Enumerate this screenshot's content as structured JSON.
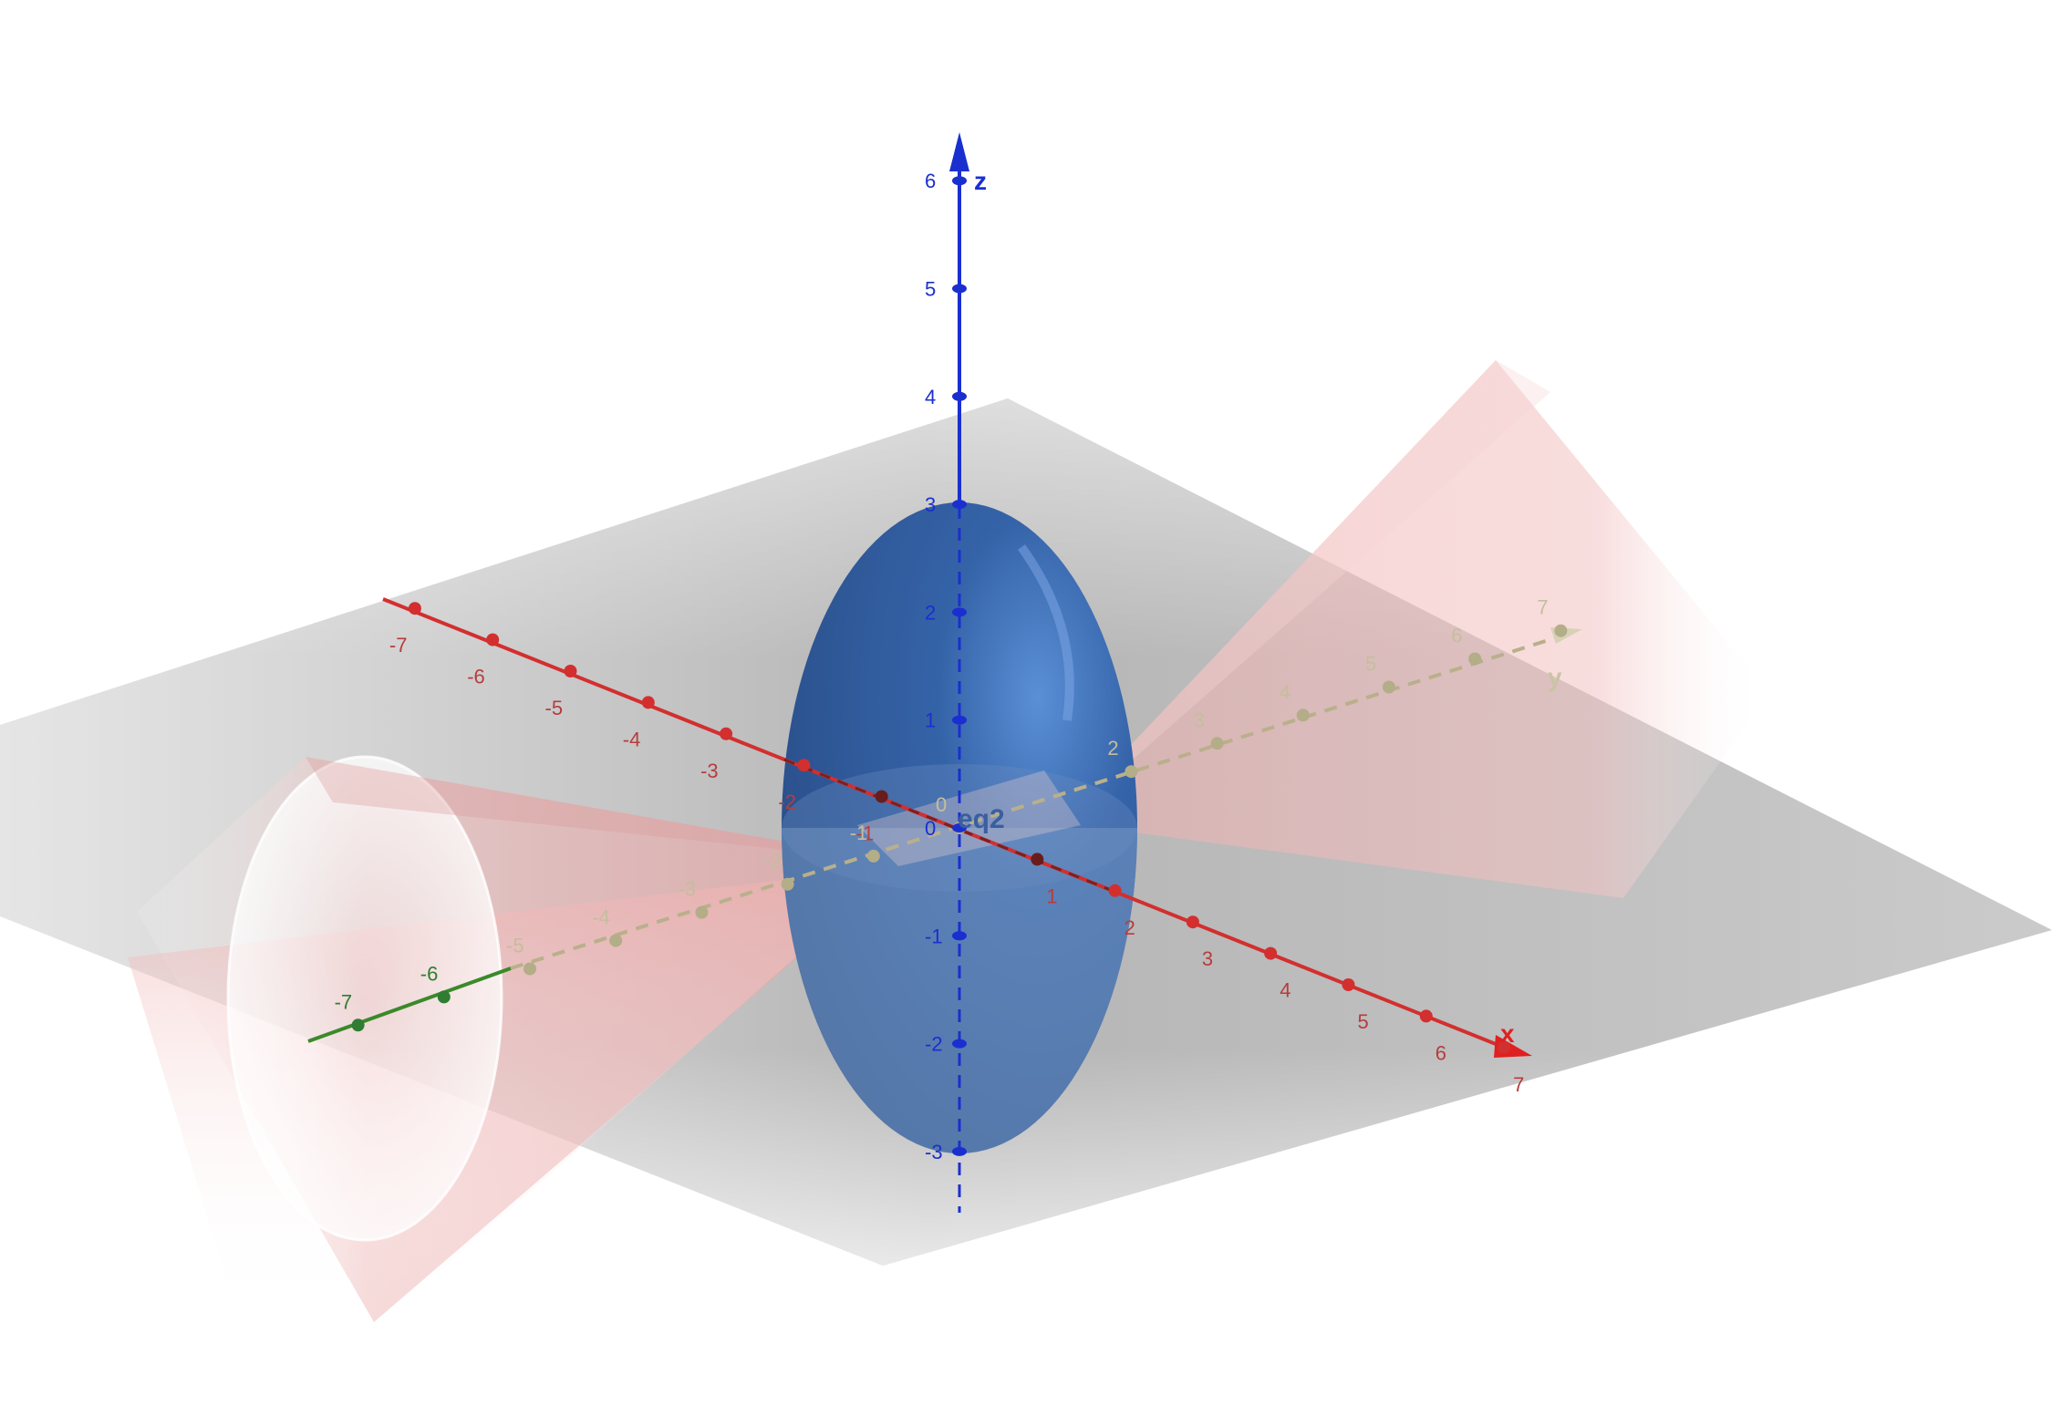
{
  "app": "GeoGebra 3D Graphics",
  "colors": {
    "x_axis": "#d32f2f",
    "y_axis": "#2e7d32",
    "z_axis": "#1a2fd0",
    "ellipsoid": "#2f5fa8",
    "cone": "#f2b9b9",
    "plane": "#9e9e9e"
  },
  "axes": {
    "x": {
      "name": "x",
      "ticks": [
        {
          "label": "-7",
          "value": -7
        },
        {
          "label": "-6",
          "value": -6
        },
        {
          "label": "-5",
          "value": -5
        },
        {
          "label": "-4",
          "value": -4
        },
        {
          "label": "-3",
          "value": -3
        },
        {
          "label": "-2",
          "value": -2
        },
        {
          "label": "-1",
          "value": -1
        },
        {
          "label": "1",
          "value": 1
        },
        {
          "label": "2",
          "value": 2
        },
        {
          "label": "3",
          "value": 3
        },
        {
          "label": "4",
          "value": 4
        },
        {
          "label": "5",
          "value": 5
        },
        {
          "label": "6",
          "value": 6
        },
        {
          "label": "7",
          "value": 7
        }
      ]
    },
    "y": {
      "name": "y",
      "ticks": [
        {
          "label": "-7",
          "value": -7
        },
        {
          "label": "-6",
          "value": -6
        },
        {
          "label": "-5",
          "value": -5
        },
        {
          "label": "-4",
          "value": -4
        },
        {
          "label": "-3",
          "value": -3
        },
        {
          "label": "-2",
          "value": -2
        },
        {
          "label": "-1",
          "value": -1
        },
        {
          "label": "0",
          "value": 0
        },
        {
          "label": "2",
          "value": 2
        },
        {
          "label": "3",
          "value": 3
        },
        {
          "label": "4",
          "value": 4
        },
        {
          "label": "5",
          "value": 5
        },
        {
          "label": "6",
          "value": 6
        },
        {
          "label": "7",
          "value": 7
        }
      ]
    },
    "z": {
      "name": "z",
      "ticks": [
        {
          "label": "6",
          "value": 6
        },
        {
          "label": "5",
          "value": 5
        },
        {
          "label": "4",
          "value": 4
        },
        {
          "label": "3",
          "value": 3
        },
        {
          "label": "2",
          "value": 2
        },
        {
          "label": "1",
          "value": 1
        },
        {
          "label": "0",
          "value": 0
        },
        {
          "label": "-1",
          "value": -1
        },
        {
          "label": "-2",
          "value": -2
        },
        {
          "label": "-3",
          "value": -3
        }
      ]
    }
  },
  "objects": {
    "ellipsoid_label": "eq2",
    "ellipsoid_semi_axes": {
      "x": 2,
      "y": 2,
      "z": 3
    }
  }
}
